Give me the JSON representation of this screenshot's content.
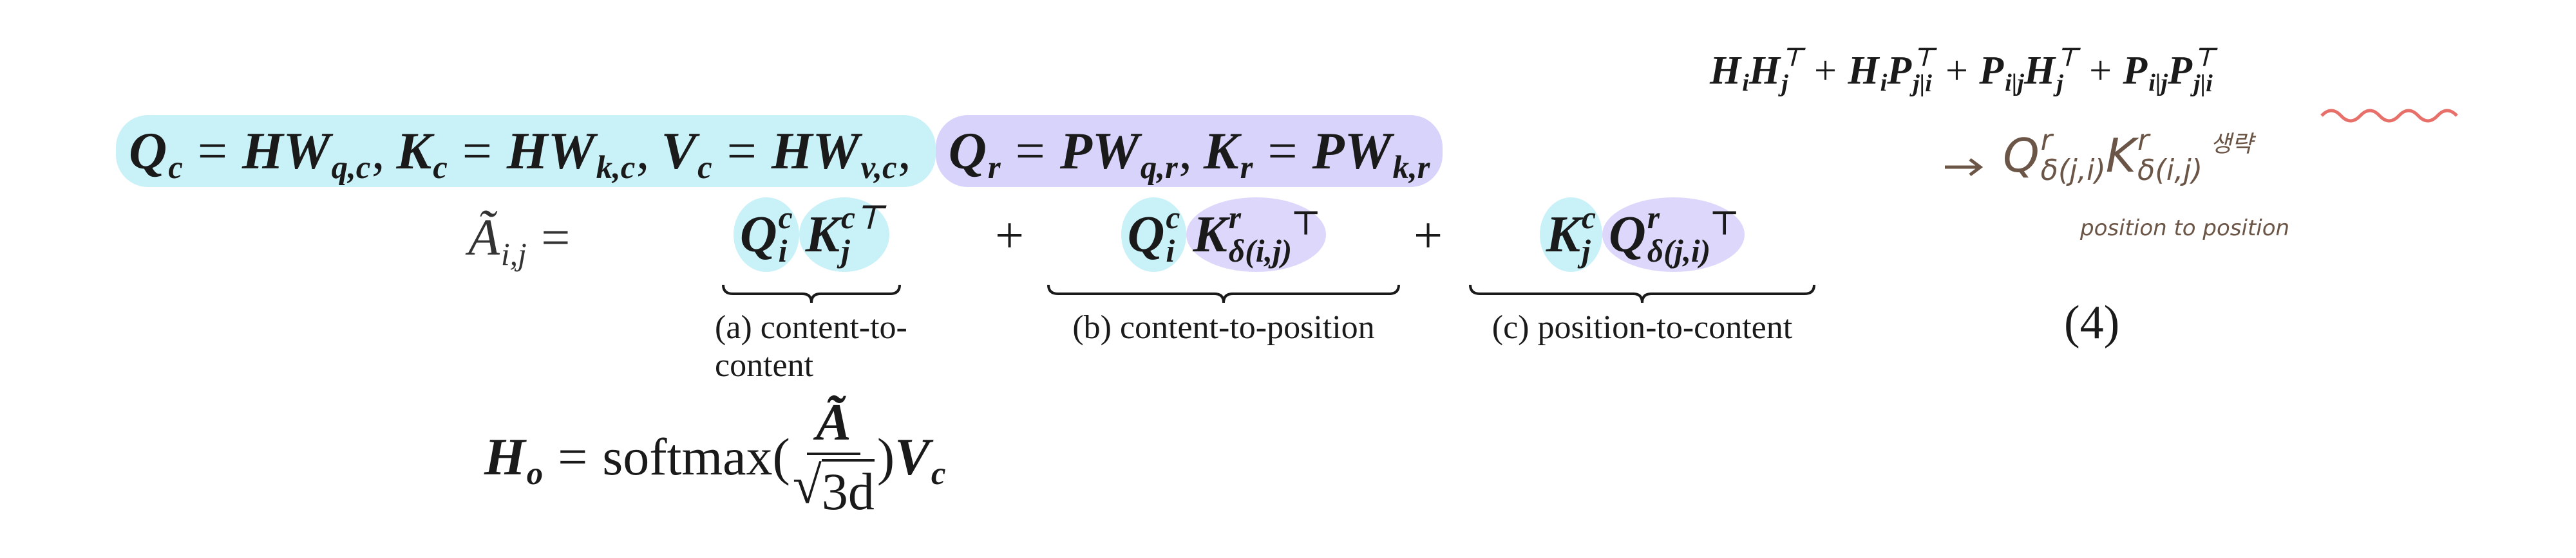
{
  "annotation": {
    "formula": [
      {
        "t": "H",
        "sub": "i"
      },
      {
        "t": "H",
        "sub": "j",
        "sup": "⊤"
      },
      "+",
      {
        "t": "H",
        "sub": "i"
      },
      {
        "t": "P",
        "sub": "j|i",
        "sup": "⊤"
      },
      "+",
      {
        "t": "P",
        "sub": "i|j"
      },
      {
        "t": "H",
        "sub": "j",
        "sup": "⊤"
      },
      "+",
      {
        "t": "P",
        "sub": "i|j"
      },
      {
        "t": "P",
        "sub": "j|i",
        "sup": "⊤"
      }
    ],
    "handwritten": [
      {
        "t": "Q",
        "sup": "r",
        "sub": "δ(j,i)"
      },
      {
        "t": "K",
        "sup": "r",
        "sub": "δ(i,j)"
      },
      "생략"
    ],
    "caption": "position to position"
  },
  "projections": {
    "content": [
      {
        "t": "Q",
        "sub": "c"
      },
      "=",
      {
        "t": "HW",
        "sub": "q,c"
      },
      ",",
      {
        "t": "K",
        "sub": "c"
      },
      "=",
      {
        "t": "HW",
        "sub": "k,c"
      },
      ",",
      {
        "t": "V",
        "sub": "c"
      },
      "=",
      {
        "t": "HW",
        "sub": "v,c"
      },
      ","
    ],
    "position": [
      {
        "t": "Q",
        "sub": "r"
      },
      "=",
      {
        "t": "PW",
        "sub": "q,r"
      },
      ",",
      {
        "t": "K",
        "sub": "r"
      },
      "=",
      {
        "t": "PW",
        "sub": "k,r"
      }
    ]
  },
  "attention": {
    "lhs": {
      "t": "Ã",
      "sub": "i,j"
    },
    "equals": "=",
    "plus": "+",
    "number": "(4)",
    "terms": [
      {
        "tokens": [
          {
            "t": "Q",
            "sub": "i",
            "sup": "c"
          },
          {
            "t": "K",
            "sub": "j",
            "sup": "c⊤"
          }
        ],
        "label": "(a) content-to-content"
      },
      {
        "tokens": [
          {
            "t": "Q",
            "sub": "i",
            "sup": "c"
          },
          {
            "t": "K",
            "sub": "δ(i,j)",
            "sup": "r",
            "post": "⊤"
          }
        ],
        "label": "(b) content-to-position"
      },
      {
        "tokens": [
          {
            "t": "K",
            "sub": "j",
            "sup": "c"
          },
          {
            "t": "Q",
            "sub": "δ(j,i)",
            "sup": "r",
            "post": "⊤"
          }
        ],
        "label": "(c) position-to-content"
      }
    ]
  },
  "output": {
    "lhs": {
      "t": "H",
      "sub": "o"
    },
    "equals": "=",
    "func": "softmax(",
    "numerator": "Ã",
    "radical": "√",
    "radicand": "3d",
    "close": ")",
    "value": {
      "t": "V",
      "sub": "c"
    }
  }
}
